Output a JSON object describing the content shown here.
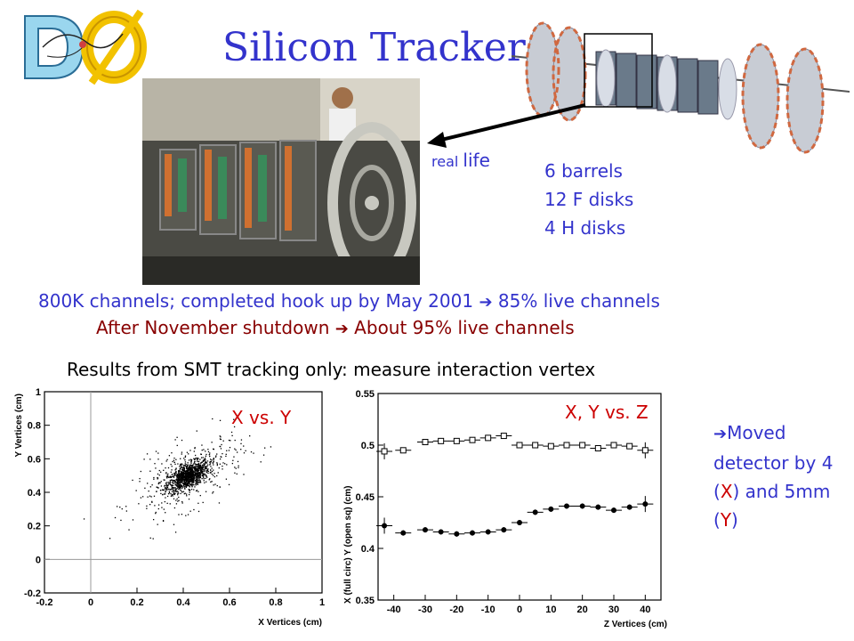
{
  "slide": {
    "title": "Silicon Tracker",
    "real_life_small": "real",
    "real_life_big": "life",
    "counts": [
      "6 barrels",
      "12 F disks",
      "4 H disks"
    ],
    "line1_a": "800K channels; completed hook up by May 2001 ",
    "line1_b": " 85% live channels",
    "line2_a": "After November shutdown ",
    "line2_b": " About 95% live channels",
    "line3": "Results from SMT tracking only:  measure interaction vertex",
    "arrow_glyph": "➔",
    "note_a": "Moved detector by 4 (",
    "note_x": "X",
    "note_b": ") and 5mm (",
    "note_y": "Y",
    "note_c": ")",
    "colors": {
      "title_blue": "#3333cc",
      "shutdown_red": "#880000",
      "label_red": "#cc0000"
    },
    "logo_icon": "dzero-logo-icon",
    "photo_icon": "silicon-tracker-photo-icon",
    "schematic_icon": "barrel-disk-schematic-icon"
  },
  "chart_data": [
    {
      "type": "scatter",
      "plot_label": "X vs. Y",
      "xlabel": "X Vertices (cm)",
      "ylabel": "Y Vertices (cm)",
      "xlim": [
        -0.2,
        1
      ],
      "ylim": [
        -0.2,
        1
      ],
      "x_ticks": [
        "-0.2",
        "0",
        "0.2",
        "0.4",
        "0.6",
        "0.8",
        "1"
      ],
      "y_ticks": [
        "-0.2",
        "0",
        "0.2",
        "0.4",
        "0.6",
        "0.8",
        "1"
      ],
      "cluster_center": [
        0.42,
        0.5
      ]
    },
    {
      "type": "scatter",
      "plot_label": "X, Y vs. Z",
      "xlabel": "Z Vertices (cm)",
      "ylabel": "X (full circ)   Y (open sq) (cm)",
      "xlim": [
        -45,
        45
      ],
      "ylim": [
        0.35,
        0.55
      ],
      "x_ticks": [
        "-40",
        "-30",
        "-20",
        "-10",
        "0",
        "10",
        "20",
        "30",
        "40"
      ],
      "y_ticks": [
        "0.35",
        "0.4",
        "0.45",
        "0.5",
        "0.55"
      ],
      "series": [
        {
          "name": "Y (open sq)",
          "marker": "square-open",
          "x": [
            -43,
            -37,
            -30,
            -25,
            -20,
            -15,
            -10,
            -5,
            0,
            5,
            10,
            15,
            20,
            25,
            30,
            35,
            40
          ],
          "values": [
            0.494,
            0.495,
            0.503,
            0.504,
            0.504,
            0.505,
            0.507,
            0.509,
            0.5,
            0.5,
            0.499,
            0.5,
            0.5,
            0.497,
            0.5,
            0.499,
            0.495
          ]
        },
        {
          "name": "X (full circ)",
          "marker": "circle-filled",
          "x": [
            -43,
            -37,
            -30,
            -25,
            -20,
            -15,
            -10,
            -5,
            0,
            5,
            10,
            15,
            20,
            25,
            30,
            35,
            40
          ],
          "values": [
            0.422,
            0.415,
            0.418,
            0.416,
            0.414,
            0.415,
            0.416,
            0.418,
            0.425,
            0.435,
            0.438,
            0.441,
            0.441,
            0.44,
            0.437,
            0.44,
            0.443
          ]
        }
      ]
    }
  ]
}
